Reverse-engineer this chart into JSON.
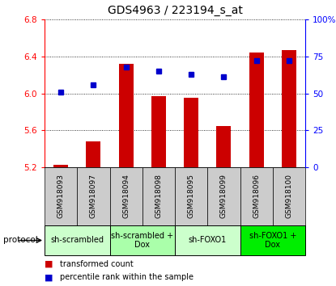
{
  "title": "GDS4963 / 223194_s_at",
  "samples": [
    "GSM918093",
    "GSM918097",
    "GSM918094",
    "GSM918098",
    "GSM918095",
    "GSM918099",
    "GSM918096",
    "GSM918100"
  ],
  "transformed_count": [
    5.23,
    5.48,
    6.32,
    5.97,
    5.95,
    5.65,
    6.44,
    6.47
  ],
  "percentile_rank": [
    51,
    56,
    68,
    65,
    63,
    61,
    72,
    72
  ],
  "ylim_left": [
    5.2,
    6.8
  ],
  "ylim_right": [
    0,
    100
  ],
  "yticks_left": [
    5.2,
    5.6,
    6.0,
    6.4,
    6.8
  ],
  "yticks_right": [
    0,
    25,
    50,
    75,
    100
  ],
  "bar_color": "#cc0000",
  "dot_color": "#0000cc",
  "bar_width": 0.45,
  "proto_spans": [
    [
      0,
      1,
      "sh-scrambled",
      "#ccffcc"
    ],
    [
      2,
      3,
      "sh-scrambled +\nDox",
      "#aaffaa"
    ],
    [
      4,
      5,
      "sh-FOXO1",
      "#ccffcc"
    ],
    [
      6,
      7,
      "sh-FOXO1 +\nDox",
      "#00ee00"
    ]
  ],
  "protocol_label": "protocol",
  "legend_red_label": "transformed count",
  "legend_blue_label": "percentile rank within the sample",
  "background_color": "#ffffff",
  "sample_bg_color": "#cccccc",
  "title_fontsize": 10,
  "tick_fontsize": 7.5,
  "sample_fontsize": 6.5,
  "proto_fontsize": 7,
  "legend_fontsize": 7
}
